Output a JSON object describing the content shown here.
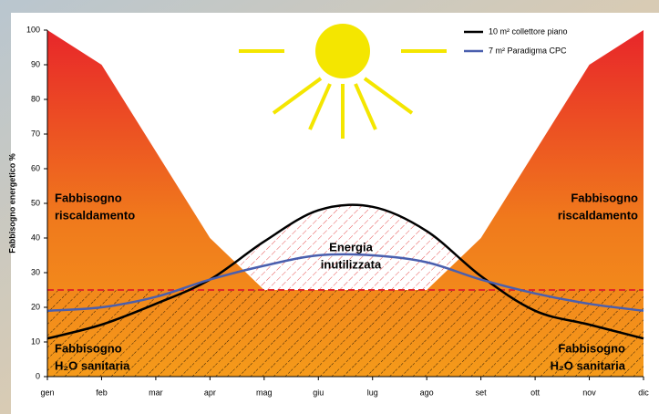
{
  "chart_data": {
    "type": "line",
    "ylabel": "Fabbisogno energetico %",
    "categories": [
      "gen",
      "feb",
      "mar",
      "apr",
      "mag",
      "giu",
      "lug",
      "ago",
      "set",
      "ott",
      "nov",
      "dic"
    ],
    "ylim": [
      0,
      100
    ],
    "yticks": [
      0,
      10,
      20,
      30,
      40,
      50,
      60,
      70,
      80,
      90,
      100
    ],
    "grid": false,
    "legend": "upper right",
    "series": [
      {
        "name": "10 m² collettore piano",
        "color": "#000000",
        "values": [
          11,
          15,
          21,
          28,
          39,
          48,
          49,
          42,
          29,
          19,
          15,
          11
        ]
      },
      {
        "name": "7 m² Paradigma CPC",
        "color": "#4a5fae",
        "values": [
          19,
          20,
          23,
          28,
          32,
          35,
          35,
          33,
          28,
          24,
          21,
          19
        ]
      }
    ],
    "heating_demand": {
      "color": "#f07a1c",
      "values": [
        100,
        90,
        65,
        40,
        25,
        25,
        25,
        25,
        40,
        65,
        90,
        100
      ]
    },
    "hot_water_demand": {
      "color": "#e02828",
      "values": [
        25,
        25,
        25,
        25,
        25,
        25,
        25,
        25,
        25,
        25,
        25,
        25
      ]
    },
    "annotations": [
      {
        "lines": [
          "Fabbisogno",
          "riscaldamento"
        ]
      },
      {
        "lines": [
          "Fabbisogno",
          "riscaldamento"
        ]
      },
      {
        "lines": [
          "Fabbisogno",
          "H₂O sanitaria"
        ]
      },
      {
        "lines": [
          "Fabbisogno",
          "H₂O sanitaria"
        ]
      },
      {
        "lines": [
          "Energia",
          "inutilizzata"
        ]
      }
    ]
  }
}
